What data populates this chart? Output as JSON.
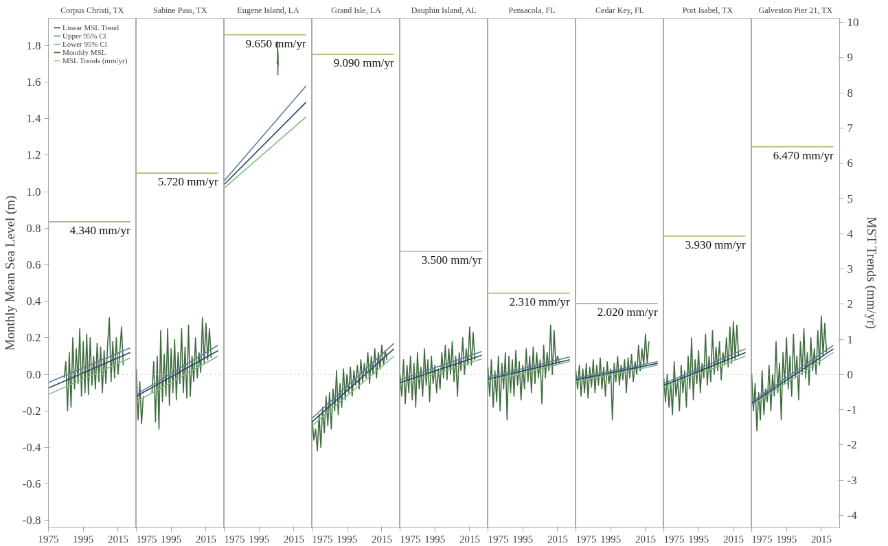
{
  "chart_data": [
    {
      "type": "line",
      "title": "Corpus Christi, TX",
      "ylabel": "Monthly Mean Sea Level (m)",
      "xlim": [
        1975,
        2025.5
      ],
      "xticks": [
        1975,
        1995,
        2015
      ],
      "ylim": [
        -0.84,
        1.95
      ],
      "yticks": [
        -0.8,
        -0.6,
        -0.4,
        -0.2,
        {
          "value": 0,
          "label": "0.0"
        },
        0.2,
        0.4,
        0.6,
        0.8,
        {
          "value": 1,
          "label": "1.0"
        },
        1.2,
        1.4,
        1.6,
        1.8
      ],
      "y2lim": [
        -4.35,
        10.12
      ],
      "legend": "top left",
      "ref_lines": [
        {
          "axis": "y",
          "value": 0,
          "line_style": "dotted",
          "color": "#bbbbbb"
        }
      ],
      "series": [
        {
          "name": "Linear MSL Trend",
          "color": "#2e4260",
          "x": [
            1975,
            2022
          ],
          "values": [
            -0.075,
            0.12
          ]
        },
        {
          "name": "Upper 95% Cl",
          "color": "#5f7d9c",
          "x": [
            1975,
            2022
          ],
          "values": [
            -0.045,
            0.145
          ]
        },
        {
          "name": "Lower 95% Cl",
          "color": "#7cc082",
          "x": [
            1975,
            2022
          ],
          "values": [
            -0.11,
            0.09
          ]
        },
        {
          "name": "Monthly MSL",
          "color": "#3f6b3f",
          "x": [
            1984,
            1985,
            1986,
            1987,
            1988,
            1989,
            1990,
            1991,
            1992,
            1993,
            1994,
            1995,
            1996,
            1997,
            1998,
            1999,
            2000,
            2001,
            2002,
            2003,
            2004,
            2005,
            2006,
            2007,
            2008,
            2009,
            2010,
            2011,
            2012,
            2013,
            2014,
            2015,
            2016,
            2017,
            2018
          ],
          "values": [
            -0.02,
            0.07,
            -0.2,
            0.12,
            -0.18,
            0.2,
            -0.08,
            0.14,
            -0.05,
            0.25,
            -0.12,
            0.18,
            -0.1,
            0.22,
            -0.11,
            0.2,
            -0.06,
            0.1,
            -0.08,
            0.17,
            -0.04,
            0.15,
            -0.1,
            0.13,
            -0.05,
            0.16,
            0.31,
            -0.04,
            0.18,
            -0.02,
            0.2,
            0.0,
            0.12,
            0.26,
            0.05
          ]
        },
        {
          "name": "MSL Trends (mm/yr)",
          "color": "#b7b86a",
          "axis": "y2",
          "x": [
            1975,
            2022
          ],
          "values": [
            4.34,
            4.34
          ],
          "value_labels": [
            null,
            "4.340 mm/yr"
          ]
        }
      ]
    },
    {
      "type": "line",
      "title": "Sabine Pass, TX",
      "tick_labels": "x",
      "xlim": [
        1975,
        2025.5
      ],
      "xticks": [
        1975,
        1995,
        2015
      ],
      "ylim": [
        -0.84,
        1.95
      ],
      "y2lim": [
        -4.35,
        10.12
      ],
      "ref_lines": [
        {
          "axis": "y",
          "value": 0,
          "line_style": "dotted",
          "color": "#bbbbbb"
        }
      ],
      "series": [
        {
          "color": "#2e4260",
          "x": [
            1975,
            2022
          ],
          "values": [
            -0.12,
            0.13
          ]
        },
        {
          "color": "#5f7d9c",
          "x": [
            1975,
            2022
          ],
          "values": [
            -0.11,
            0.16
          ]
        },
        {
          "color": "#7cc082",
          "x": [
            1975,
            2022
          ],
          "values": [
            -0.15,
            0.1
          ]
        },
        {
          "color": "#3f6b3f",
          "x": [
            1975,
            1976,
            1977,
            1978,
            1979,
            1980,
            1984,
            1985,
            1986,
            1987,
            1988,
            1989,
            1990,
            1991,
            1992,
            1993,
            1994,
            1995,
            1996,
            1997,
            1998,
            1999,
            2000,
            2001,
            2002,
            2003,
            2004,
            2005,
            2006,
            2007,
            2008,
            2009,
            2010,
            2011,
            2012,
            2013,
            2014,
            2015,
            2016,
            2017,
            2018
          ],
          "values": [
            0.03,
            -0.25,
            -0.04,
            -0.27,
            -0.12,
            null,
            -0.1,
            0.07,
            -0.26,
            0.1,
            -0.3,
            0.24,
            -0.15,
            0.11,
            -0.12,
            0.25,
            -0.17,
            0.14,
            -0.1,
            0.19,
            -0.14,
            0.12,
            -0.05,
            0.25,
            -0.1,
            0.15,
            -0.13,
            0.27,
            -0.12,
            0.1,
            -0.04,
            0.2,
            -0.02,
            0.12,
            0.01,
            0.31,
            0.06,
            0.28,
            0.08,
            0.25,
            0.09
          ]
        },
        {
          "color": "#b7b86a",
          "axis": "y2",
          "x": [
            1975,
            2022
          ],
          "values": [
            5.72,
            5.72
          ],
          "value_labels": [
            null,
            "5.720 mm/yr"
          ]
        }
      ]
    },
    {
      "type": "line",
      "title": "Eugene Island, LA",
      "tick_labels": "x",
      "xlim": [
        1975,
        2025.5
      ],
      "xticks": [
        1975,
        1995,
        2015
      ],
      "ylim": [
        -0.84,
        1.95
      ],
      "y2lim": [
        -4.35,
        10.12
      ],
      "ref_lines": [
        {
          "axis": "y",
          "value": 0,
          "line_style": "dotted",
          "color": "#bbbbbb"
        }
      ],
      "series": [
        {
          "color": "#2e4260",
          "x": [
            1975,
            2022
          ],
          "values": [
            1.04,
            1.49
          ]
        },
        {
          "color": "#5f7d9c",
          "x": [
            1975,
            2022
          ],
          "values": [
            1.06,
            1.58
          ]
        },
        {
          "color": "#7cc082",
          "x": [
            1975,
            2022
          ],
          "values": [
            1.02,
            1.41
          ]
        },
        {
          "color": "#3f6b3f",
          "x": [
            2005.4,
            2005.6,
            2005.7,
            2005.8,
            2005.9,
            2006.0
          ],
          "values": [
            1.7,
            1.72,
            1.82,
            1.64,
            1.76,
            1.69
          ]
        },
        {
          "color": "#b7b86a",
          "axis": "y2",
          "x": [
            1975,
            2022
          ],
          "values": [
            9.65,
            9.65
          ],
          "value_labels": [
            null,
            "9.650 mm/yr"
          ]
        }
      ]
    },
    {
      "type": "line",
      "title": "Grand Isle, LA",
      "tick_labels": "x",
      "xlim": [
        1975,
        2025.5
      ],
      "xticks": [
        1975,
        1995,
        2015
      ],
      "ylim": [
        -0.84,
        1.95
      ],
      "y2lim": [
        -4.35,
        10.12
      ],
      "ref_lines": [
        {
          "axis": "y",
          "value": 0,
          "line_style": "dotted",
          "color": "#bbbbbb"
        }
      ],
      "series": [
        {
          "color": "#2e4260",
          "x": [
            1975,
            2022
          ],
          "values": [
            -0.26,
            0.14
          ]
        },
        {
          "color": "#5f7d9c",
          "x": [
            1975,
            2022
          ],
          "values": [
            -0.24,
            0.17
          ]
        },
        {
          "color": "#7cc082",
          "x": [
            1975,
            2022
          ],
          "values": [
            -0.28,
            0.1
          ]
        },
        {
          "color": "#3f6b3f",
          "x": [
            1975,
            1976,
            1977,
            1978,
            1979,
            1980,
            1981,
            1982,
            1983,
            1984,
            1985,
            1986,
            1987,
            1988,
            1989,
            1990,
            1991,
            1992,
            1993,
            1994,
            1995,
            1996,
            1997,
            1998,
            1999,
            2000,
            2001,
            2002,
            2003,
            2004,
            2005,
            2006,
            2007,
            2008,
            2009,
            2010,
            2011,
            2012,
            2013,
            2014,
            2015,
            2016,
            2017,
            2018
          ],
          "values": [
            -0.25,
            -0.36,
            -0.3,
            -0.42,
            -0.22,
            -0.4,
            -0.18,
            -0.32,
            -0.12,
            -0.28,
            -0.1,
            -0.3,
            -0.08,
            -0.2,
            0.02,
            -0.22,
            -0.05,
            -0.18,
            0.03,
            -0.14,
            0.0,
            -0.1,
            0.04,
            -0.12,
            0.02,
            -0.06,
            0.05,
            -0.08,
            0.08,
            -0.04,
            0.06,
            -0.02,
            0.12,
            -0.05,
            0.1,
            0.0,
            0.14,
            -0.02,
            0.12,
            0.03,
            0.16,
            0.05,
            0.13,
            0.08
          ]
        },
        {
          "color": "#b7b86a",
          "axis": "y2",
          "x": [
            1975,
            2022
          ],
          "values": [
            9.09,
            9.09
          ],
          "value_labels": [
            null,
            "9.090 mm/yr"
          ]
        }
      ]
    },
    {
      "type": "line",
      "title": "Dauphin Island, AL",
      "tick_labels": "x",
      "xlim": [
        1975,
        2025.5
      ],
      "xticks": [
        1975,
        1995,
        2015
      ],
      "ylim": [
        -0.84,
        1.95
      ],
      "y2lim": [
        -4.35,
        10.12
      ],
      "ref_lines": [
        {
          "axis": "y",
          "value": 0,
          "line_style": "dotted",
          "color": "#bbbbbb"
        }
      ],
      "series": [
        {
          "color": "#2e4260",
          "x": [
            1975,
            2022
          ],
          "values": [
            -0.045,
            0.105
          ]
        },
        {
          "color": "#5f7d9c",
          "x": [
            1975,
            2022
          ],
          "values": [
            -0.03,
            0.125
          ]
        },
        {
          "color": "#7cc082",
          "x": [
            1975,
            2022
          ],
          "values": [
            -0.06,
            0.085
          ]
        },
        {
          "color": "#3f6b3f",
          "x": [
            1975,
            1976,
            1977,
            1978,
            1979,
            1980,
            1981,
            1982,
            1983,
            1984,
            1985,
            1986,
            1987,
            1988,
            1989,
            1990,
            1991,
            1992,
            1993,
            1994,
            1995,
            1996,
            1997,
            1998,
            1999,
            2000,
            2001,
            2002,
            2003,
            2004,
            2005,
            2006,
            2007,
            2008,
            2009,
            2010,
            2011,
            2012,
            2013,
            2014,
            2015,
            2016,
            2017,
            2018
          ],
          "values": [
            0.0,
            -0.12,
            0.08,
            -0.16,
            0.05,
            -0.1,
            0.1,
            -0.14,
            0.06,
            -0.18,
            0.12,
            -0.08,
            0.04,
            -0.12,
            0.14,
            -0.06,
            0.08,
            -0.15,
            0.1,
            -0.05,
            0.05,
            -0.1,
            0.03,
            -0.08,
            0.12,
            -0.02,
            0.16,
            -0.03,
            0.14,
            0.0,
            0.18,
            -0.04,
            0.1,
            -0.12,
            0.12,
            0.02,
            0.2,
            0.0,
            0.14,
            0.05,
            0.26,
            0.05,
            0.23,
            0.08
          ]
        },
        {
          "color": "#b7b86a",
          "axis": "y2",
          "x": [
            1975,
            2022
          ],
          "values": [
            3.5,
            3.5
          ],
          "value_labels": [
            null,
            "3.500 mm/yr"
          ]
        }
      ]
    },
    {
      "type": "line",
      "title": "Pensacola, FL",
      "tick_labels": "x",
      "xlim": [
        1975,
        2025.5
      ],
      "xticks": [
        1975,
        1995,
        2015
      ],
      "ylim": [
        -0.84,
        1.95
      ],
      "y2lim": [
        -4.35,
        10.12
      ],
      "ref_lines": [
        {
          "axis": "y",
          "value": 0,
          "line_style": "dotted",
          "color": "#bbbbbb"
        }
      ],
      "series": [
        {
          "color": "#2e4260",
          "x": [
            1975,
            2022
          ],
          "values": [
            -0.026,
            0.08
          ]
        },
        {
          "color": "#5f7d9c",
          "x": [
            1975,
            2022
          ],
          "values": [
            -0.015,
            0.095
          ]
        },
        {
          "color": "#7cc082",
          "x": [
            1975,
            2022
          ],
          "values": [
            -0.04,
            0.07
          ]
        },
        {
          "color": "#3f6b3f",
          "x": [
            1975,
            1976,
            1977,
            1978,
            1979,
            1980,
            1981,
            1982,
            1983,
            1984,
            1985,
            1986,
            1987,
            1988,
            1989,
            1990,
            1991,
            1992,
            1993,
            1994,
            1995,
            1996,
            1997,
            1998,
            1999,
            2000,
            2001,
            2002,
            2003,
            2004,
            2005,
            2006,
            2007,
            2008,
            2009,
            2010,
            2011,
            2012,
            2013,
            2014,
            2015,
            2016
          ],
          "values": [
            0.04,
            -0.12,
            0.08,
            -0.18,
            0.02,
            -0.15,
            0.1,
            -0.2,
            0.06,
            -0.08,
            0.12,
            -0.25,
            0.1,
            -0.1,
            0.08,
            -0.12,
            0.13,
            -0.06,
            0.07,
            -0.14,
            0.05,
            -0.08,
            0.14,
            -0.04,
            0.1,
            -0.1,
            0.15,
            -0.05,
            0.12,
            -0.02,
            0.08,
            -0.16,
            0.16,
            -0.02,
            0.12,
            0.02,
            0.27,
            0.0,
            0.24,
            0.05,
            0.1,
            0.06
          ]
        },
        {
          "color": "#b7b86a",
          "axis": "y2",
          "x": [
            1975,
            2022
          ],
          "values": [
            2.31,
            2.31
          ],
          "value_labels": [
            null,
            "2.310 mm/yr"
          ]
        }
      ]
    },
    {
      "type": "line",
      "title": "Cedar Key, FL",
      "tick_labels": "x",
      "xlim": [
        1975,
        2025.5
      ],
      "xticks": [
        1975,
        1995,
        2015
      ],
      "ylim": [
        -0.84,
        1.95
      ],
      "y2lim": [
        -4.35,
        10.12
      ],
      "ref_lines": [
        {
          "axis": "y",
          "value": 0,
          "line_style": "dotted",
          "color": "#bbbbbb"
        }
      ],
      "series": [
        {
          "color": "#2e4260",
          "x": [
            1975,
            2022
          ],
          "values": [
            -0.03,
            0.06
          ]
        },
        {
          "color": "#5f7d9c",
          "x": [
            1975,
            2022
          ],
          "values": [
            -0.02,
            0.07
          ]
        },
        {
          "color": "#7cc082",
          "x": [
            1975,
            2022
          ],
          "values": [
            -0.04,
            0.05
          ]
        },
        {
          "color": "#3f6b3f",
          "x": [
            1975,
            1976,
            1977,
            1978,
            1979,
            1980,
            1981,
            1982,
            1983,
            1984,
            1985,
            1986,
            1987,
            1988,
            1989,
            1990,
            1991,
            1992,
            1993,
            1994,
            1995,
            1996,
            1997,
            1998,
            1999,
            2000,
            2001,
            2002,
            2003,
            2004,
            2005,
            2006,
            2007,
            2008,
            2009,
            2010,
            2011,
            2012,
            2013,
            2014,
            2015,
            2016,
            2017
          ],
          "values": [
            0.02,
            -0.08,
            0.05,
            -0.12,
            0.03,
            -0.1,
            0.06,
            -0.13,
            0.04,
            -0.07,
            0.08,
            -0.1,
            0.05,
            -0.06,
            0.09,
            -0.08,
            0.04,
            -0.12,
            0.07,
            -0.05,
            0.03,
            -0.25,
            0.06,
            -0.04,
            0.1,
            -0.06,
            0.05,
            -0.03,
            0.08,
            -0.1,
            0.09,
            -0.02,
            0.11,
            -0.04,
            0.07,
            0.0,
            0.16,
            0.02,
            0.14,
            0.05,
            0.22,
            0.06,
            0.18
          ]
        },
        {
          "color": "#b7b86a",
          "axis": "y2",
          "x": [
            1975,
            2022
          ],
          "values": [
            2.02,
            2.02
          ],
          "value_labels": [
            null,
            "2.020 mm/yr"
          ]
        }
      ]
    },
    {
      "type": "line",
      "title": "Port Isabel, TX",
      "tick_labels": "x",
      "xlim": [
        1975,
        2025.5
      ],
      "xticks": [
        1975,
        1995,
        2015
      ],
      "ylim": [
        -0.84,
        1.95
      ],
      "y2lim": [
        -4.35,
        10.12
      ],
      "ref_lines": [
        {
          "axis": "y",
          "value": 0,
          "line_style": "dotted",
          "color": "#bbbbbb"
        }
      ],
      "series": [
        {
          "color": "#2e4260",
          "x": [
            1975,
            2022
          ],
          "values": [
            -0.06,
            0.12
          ]
        },
        {
          "color": "#5f7d9c",
          "x": [
            1975,
            2022
          ],
          "values": [
            -0.05,
            0.14
          ]
        },
        {
          "color": "#7cc082",
          "x": [
            1975,
            2022
          ],
          "values": [
            -0.07,
            0.1
          ]
        },
        {
          "color": "#3f6b3f",
          "x": [
            1975,
            1976,
            1977,
            1978,
            1979,
            1980,
            1981,
            1982,
            1983,
            1984,
            1985,
            1986,
            1987,
            1988,
            1989,
            1990,
            1991,
            1992,
            1993,
            1994,
            1995,
            1996,
            1997,
            1998,
            1999,
            2000,
            2001,
            2002,
            2003,
            2004,
            2005,
            2006,
            2007,
            2008,
            2009,
            2010,
            2011,
            2012,
            2013,
            2014,
            2015,
            2016,
            2017,
            2018
          ],
          "values": [
            -0.02,
            -0.15,
            0.0,
            -0.18,
            -0.05,
            -0.22,
            0.07,
            -0.12,
            -0.03,
            -0.2,
            0.05,
            -0.1,
            0.02,
            -0.18,
            0.1,
            -0.08,
            0.2,
            -0.14,
            0.08,
            -0.05,
            0.13,
            -0.1,
            0.06,
            -0.02,
            0.22,
            -0.06,
            0.1,
            -0.04,
            0.24,
            0.0,
            0.15,
            0.02,
            0.18,
            -0.03,
            0.12,
            0.05,
            0.2,
            0.04,
            0.26,
            0.06,
            0.29,
            0.08,
            0.27,
            0.1
          ]
        },
        {
          "color": "#b7b86a",
          "axis": "y2",
          "x": [
            1975,
            2022
          ],
          "values": [
            3.93,
            3.93
          ],
          "value_labels": [
            null,
            "3.930 mm/yr"
          ]
        }
      ]
    },
    {
      "type": "line",
      "title": "Galveston Pier 21, TX",
      "y2label": "MST Trends (mm/yr)",
      "xlim": [
        1975,
        2025.5
      ],
      "xticks": [
        1975,
        1995,
        2015
      ],
      "ylim": [
        -0.84,
        1.95
      ],
      "y2lim": [
        -4.35,
        10.12
      ],
      "y2ticks": [
        -4,
        -3,
        -2,
        -1,
        0,
        1,
        2,
        3,
        4,
        5,
        6,
        7,
        8,
        9,
        10
      ],
      "ref_lines": [
        {
          "axis": "y",
          "value": 0,
          "line_style": "dotted",
          "color": "#bbbbbb"
        }
      ],
      "series": [
        {
          "color": "#2e4260",
          "x": [
            1975,
            2022
          ],
          "values": [
            -0.16,
            0.14
          ]
        },
        {
          "color": "#5f7d9c",
          "x": [
            1975,
            2022
          ],
          "values": [
            -0.15,
            0.16
          ]
        },
        {
          "color": "#7cc082",
          "x": [
            1975,
            2022
          ],
          "values": [
            -0.17,
            0.12
          ]
        },
        {
          "color": "#3f6b3f",
          "x": [
            1975,
            1976,
            1977,
            1978,
            1979,
            1980,
            1981,
            1982,
            1983,
            1984,
            1985,
            1986,
            1987,
            1988,
            1989,
            1990,
            1991,
            1992,
            1993,
            1994,
            1995,
            1996,
            1997,
            1998,
            1999,
            2000,
            2001,
            2002,
            2003,
            2004,
            2005,
            2006,
            2007,
            2008,
            2009,
            2010,
            2011,
            2012,
            2013,
            2014,
            2015,
            2016,
            2017,
            2018
          ],
          "values": [
            0.0,
            -0.2,
            -0.05,
            -0.31,
            -0.1,
            -0.25,
            0.02,
            -0.22,
            -0.08,
            -0.15,
            0.05,
            -0.2,
            0.0,
            -0.12,
            0.18,
            -0.1,
            0.06,
            -0.25,
            0.12,
            -0.05,
            0.2,
            -0.08,
            0.1,
            -0.12,
            0.22,
            -0.02,
            0.1,
            -0.14,
            0.18,
            0.0,
            0.25,
            -0.02,
            0.12,
            -0.06,
            0.2,
            0.02,
            0.14,
            0.0,
            0.24,
            0.05,
            0.32,
            0.1,
            0.28,
            0.12
          ]
        },
        {
          "color": "#b7b86a",
          "axis": "y2",
          "x": [
            1975,
            2022
          ],
          "values": [
            6.47,
            6.47
          ],
          "value_labels": [
            null,
            "6.470 mm/yr"
          ]
        }
      ]
    }
  ]
}
